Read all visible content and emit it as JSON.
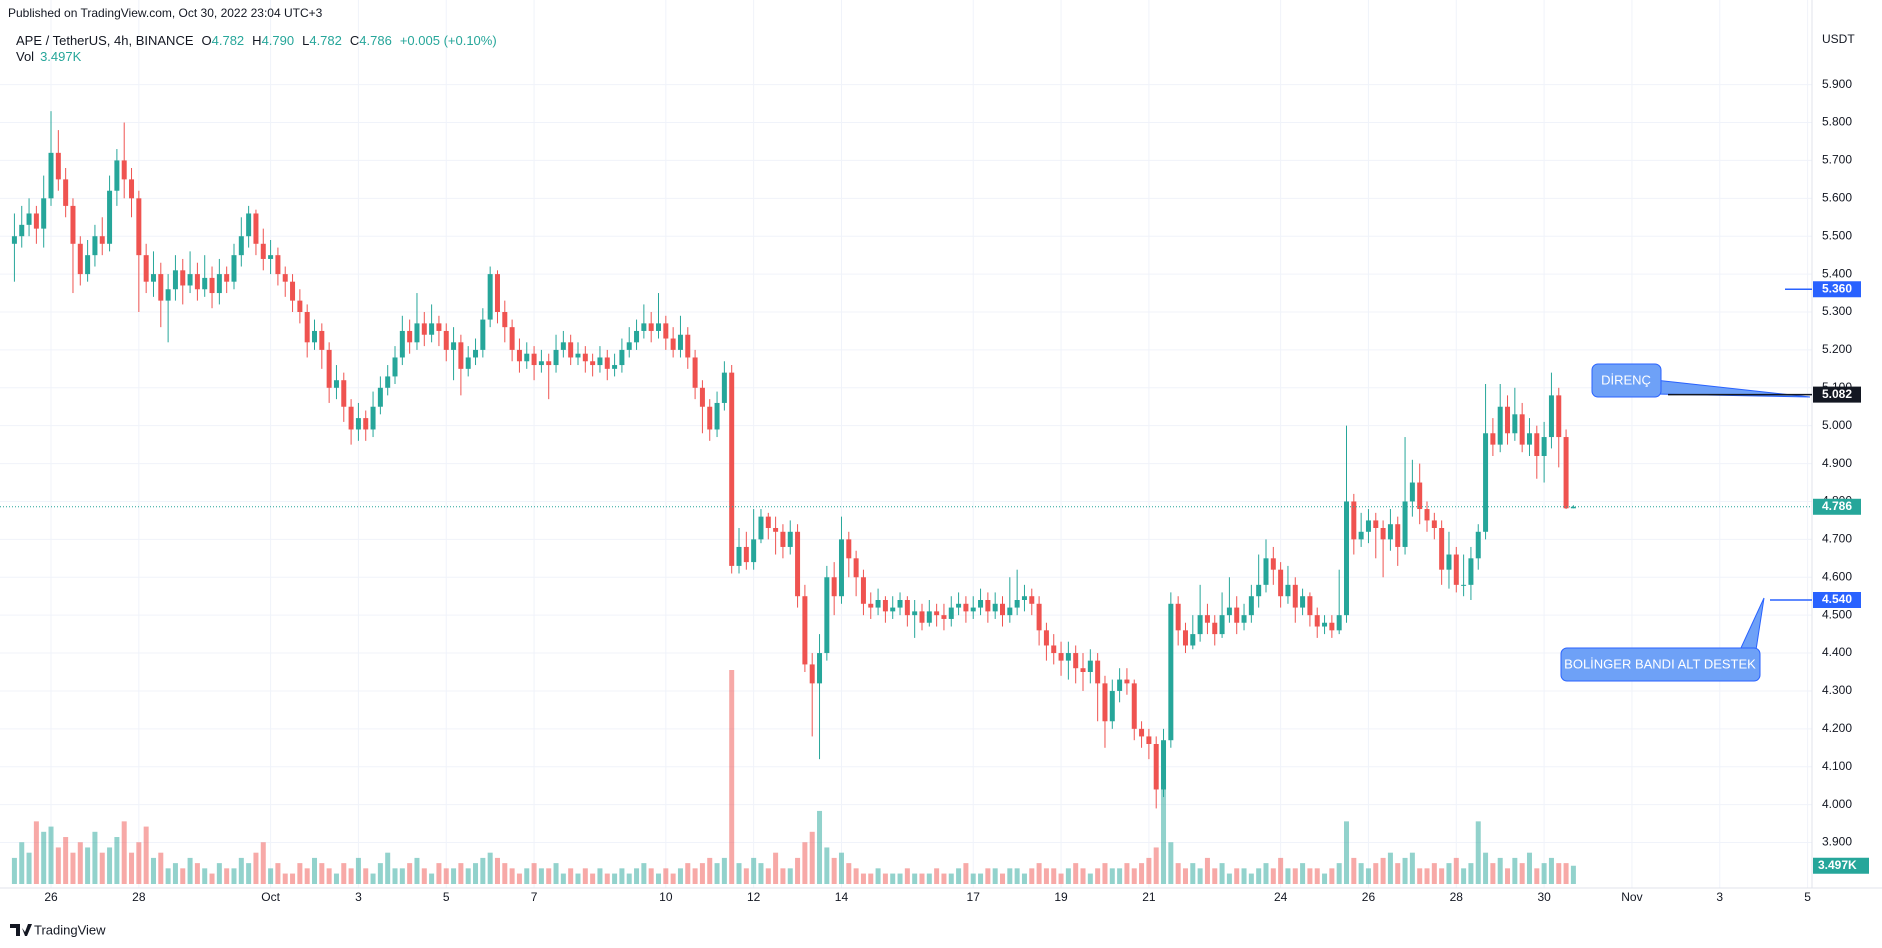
{
  "chart_data": {
    "type": "candlestick",
    "published": "Published on TradingView.com, Oct 30, 2022 23:04 UTC+3",
    "legend": {
      "symbol": "APE / TetherUS, 4h, BINANCE",
      "fields": [
        {
          "label": "O",
          "value": "4.782"
        },
        {
          "label": "H",
          "value": "4.790"
        },
        {
          "label": "L",
          "value": "4.782"
        },
        {
          "label": "C",
          "value": "4.786"
        }
      ],
      "change": "+0.005 (+0.10%)"
    },
    "volume_label": {
      "label": "Vol",
      "value": "3.497K"
    },
    "currency": "USDT",
    "footer": "TradingView",
    "up_color": "#26a69a",
    "down_color": "#ef5350",
    "grid": true,
    "xlim": [
      -1.97,
      245.6
    ],
    "xticks": [
      {
        "value": 5,
        "label": "26"
      },
      {
        "value": 17,
        "label": "28"
      },
      {
        "value": 35,
        "label": "Oct"
      },
      {
        "value": 47,
        "label": "3"
      },
      {
        "value": 59,
        "label": "5"
      },
      {
        "value": 71,
        "label": "7"
      },
      {
        "value": 89,
        "label": "10"
      },
      {
        "value": 101,
        "label": "12"
      },
      {
        "value": 113,
        "label": "14"
      },
      {
        "value": 131,
        "label": "17"
      },
      {
        "value": 143,
        "label": "19"
      },
      {
        "value": 155,
        "label": "21"
      },
      {
        "value": 173,
        "label": "24"
      },
      {
        "value": 185,
        "label": "26"
      },
      {
        "value": 197,
        "label": "28"
      },
      {
        "value": 209,
        "label": "30"
      },
      {
        "value": 221,
        "label": "Nov"
      },
      {
        "value": 233,
        "label": "3"
      },
      {
        "value": 245,
        "label": "5"
      }
    ],
    "ylim": [
      3.78,
      6.06
    ],
    "yticks": [
      {
        "value": 3.9,
        "label": "3.900"
      },
      {
        "value": 4.0,
        "label": "4.000"
      },
      {
        "value": 4.1,
        "label": "4.100"
      },
      {
        "value": 4.2,
        "label": "4.200"
      },
      {
        "value": 4.3,
        "label": "4.300"
      },
      {
        "value": 4.4,
        "label": "4.400"
      },
      {
        "value": 4.5,
        "label": "4.500"
      },
      {
        "value": 4.6,
        "label": "4.600"
      },
      {
        "value": 4.7,
        "label": "4.700"
      },
      {
        "value": 4.8,
        "label": "4.800"
      },
      {
        "value": 4.9,
        "label": "4.900"
      },
      {
        "value": 5.0,
        "label": "5.000"
      },
      {
        "value": 5.1,
        "label": "5.100"
      },
      {
        "value": 5.2,
        "label": "5.200"
      },
      {
        "value": 5.3,
        "label": "5.300"
      },
      {
        "value": 5.4,
        "label": "5.400"
      },
      {
        "value": 5.5,
        "label": "5.500"
      },
      {
        "value": 5.6,
        "label": "5.600"
      },
      {
        "value": 5.7,
        "label": "5.700"
      },
      {
        "value": 5.8,
        "label": "5.800"
      },
      {
        "value": 5.9,
        "label": "5.900"
      }
    ],
    "last_price": {
      "value": 4.786,
      "label": "4.786",
      "color": "#26a69a"
    },
    "levels": [
      {
        "value": 5.36,
        "label": "5.360",
        "color": "#2962ff"
      },
      {
        "value": 5.082,
        "label": "5.082",
        "color": "#131722"
      },
      {
        "value": 4.54,
        "label": "4.540",
        "color": "#2962ff"
      }
    ],
    "annotations": [
      "DİRENÇ",
      "BOLİNGER BANDI ALT DESTEK"
    ],
    "open": [
      5.48,
      5.5,
      5.53,
      5.56,
      5.52,
      5.6,
      5.72,
      5.65,
      5.58,
      5.48,
      5.4,
      5.45,
      5.5,
      5.48,
      5.62,
      5.7,
      5.65,
      5.6,
      5.45,
      5.38,
      5.4,
      5.33,
      5.36,
      5.41,
      5.37,
      5.4,
      5.36,
      5.39,
      5.35,
      5.4,
      5.38,
      5.45,
      5.5,
      5.56,
      5.48,
      5.44,
      5.45,
      5.4,
      5.38,
      5.33,
      5.3,
      5.22,
      5.25,
      5.2,
      5.1,
      5.12,
      5.05,
      4.99,
      5.02,
      4.99,
      5.05,
      5.1,
      5.13,
      5.18,
      5.25,
      5.22,
      5.27,
      5.24,
      5.27,
      5.25,
      5.2,
      5.22,
      5.15,
      5.18,
      5.2,
      5.28,
      5.4,
      5.3,
      5.26,
      5.2,
      5.17,
      5.19,
      5.16,
      5.17,
      5.16,
      5.2,
      5.22,
      5.18,
      5.19,
      5.17,
      5.16,
      5.18,
      5.15,
      5.16,
      5.2,
      5.22,
      5.25,
      5.27,
      5.25,
      5.27,
      5.23,
      5.2,
      5.24,
      5.18,
      5.1,
      5.05,
      4.99,
      5.06,
      5.14,
      4.63,
      4.68,
      4.64,
      4.7,
      4.76,
      4.73,
      4.72,
      4.68,
      4.72,
      4.55,
      4.37,
      4.32,
      4.4,
      4.6,
      4.55,
      4.7,
      4.65,
      4.6,
      4.53,
      4.52,
      4.54,
      4.51,
      4.52,
      4.54,
      4.5,
      4.51,
      4.48,
      4.51,
      4.5,
      4.49,
      4.52,
      4.53,
      4.51,
      4.52,
      4.54,
      4.51,
      4.53,
      4.5,
      4.52,
      4.54,
      4.55,
      4.53,
      4.46,
      4.42,
      4.4,
      4.38,
      4.4,
      4.36,
      4.35,
      4.38,
      4.32,
      4.22,
      4.3,
      4.33,
      4.32,
      4.2,
      4.18,
      4.16,
      4.04,
      4.17,
      4.53,
      4.46,
      4.42,
      4.45,
      4.5,
      4.48,
      4.45,
      4.5,
      4.52,
      4.48,
      4.5,
      4.55,
      4.58,
      4.65,
      4.62,
      4.55,
      4.58,
      4.52,
      4.55,
      4.5,
      4.47,
      4.48,
      4.46,
      4.5,
      4.8,
      4.7,
      4.72,
      4.75,
      4.73,
      4.7,
      4.74,
      4.68,
      4.8,
      4.85,
      4.78,
      4.75,
      4.73,
      4.62,
      4.66,
      4.58,
      4.58,
      4.65,
      4.72,
      4.98,
      4.95,
      5.05,
      4.98,
      5.03,
      4.95,
      4.98,
      4.92,
      4.97,
      5.08,
      4.97,
      4.782
    ],
    "high": [
      5.56,
      5.58,
      5.6,
      5.58,
      5.66,
      5.83,
      5.78,
      5.68,
      5.6,
      5.5,
      5.49,
      5.53,
      5.55,
      5.66,
      5.73,
      5.8,
      5.68,
      5.62,
      5.48,
      5.46,
      5.43,
      5.4,
      5.45,
      5.44,
      5.46,
      5.43,
      5.45,
      5.42,
      5.44,
      5.42,
      5.48,
      5.55,
      5.58,
      5.57,
      5.52,
      5.49,
      5.47,
      5.42,
      5.4,
      5.36,
      5.32,
      5.28,
      5.27,
      5.22,
      5.16,
      5.14,
      5.07,
      5.06,
      5.04,
      5.09,
      5.13,
      5.16,
      5.21,
      5.29,
      5.28,
      5.35,
      5.3,
      5.32,
      5.29,
      5.27,
      5.26,
      5.24,
      5.21,
      5.23,
      5.31,
      5.42,
      5.41,
      5.33,
      5.28,
      5.23,
      5.22,
      5.21,
      5.2,
      5.19,
      5.24,
      5.25,
      5.24,
      5.22,
      5.21,
      5.19,
      5.21,
      5.2,
      5.19,
      5.23,
      5.26,
      5.28,
      5.32,
      5.3,
      5.35,
      5.29,
      5.26,
      5.29,
      5.26,
      5.2,
      5.12,
      5.07,
      5.09,
      5.17,
      5.16,
      4.73,
      4.72,
      4.78,
      4.78,
      4.77,
      4.76,
      4.74,
      4.75,
      4.74,
      4.58,
      4.4,
      4.45,
      4.63,
      4.64,
      4.76,
      4.72,
      4.67,
      4.62,
      4.56,
      4.57,
      4.55,
      4.55,
      4.56,
      4.55,
      4.54,
      4.53,
      4.54,
      4.53,
      4.53,
      4.55,
      4.56,
      4.55,
      4.55,
      4.57,
      4.56,
      4.56,
      4.55,
      4.6,
      4.62,
      4.58,
      4.57,
      4.55,
      4.48,
      4.45,
      4.43,
      4.43,
      4.42,
      4.4,
      4.41,
      4.4,
      4.34,
      4.33,
      4.36,
      4.36,
      4.33,
      4.22,
      4.2,
      4.18,
      4.2,
      4.56,
      4.55,
      4.48,
      4.5,
      4.58,
      4.53,
      4.5,
      4.56,
      4.6,
      4.55,
      4.53,
      4.58,
      4.66,
      4.7,
      4.68,
      4.64,
      4.63,
      4.6,
      4.57,
      4.56,
      4.52,
      4.5,
      4.5,
      4.62,
      5.0,
      4.82,
      4.77,
      4.78,
      4.77,
      4.75,
      4.78,
      4.76,
      4.97,
      4.91,
      4.9,
      4.8,
      4.77,
      4.75,
      4.72,
      4.68,
      4.66,
      4.68,
      4.74,
      5.11,
      5.02,
      5.11,
      5.08,
      5.1,
      5.06,
      5.02,
      5.0,
      5.01,
      5.14,
      5.1,
      4.99,
      4.79
    ],
    "low": [
      5.38,
      5.47,
      5.5,
      5.48,
      5.47,
      5.58,
      5.62,
      5.55,
      5.35,
      5.37,
      5.38,
      5.42,
      5.45,
      5.46,
      5.58,
      5.6,
      5.55,
      5.3,
      5.35,
      5.34,
      5.26,
      5.22,
      5.33,
      5.32,
      5.35,
      5.33,
      5.34,
      5.31,
      5.32,
      5.35,
      5.36,
      5.42,
      5.47,
      5.45,
      5.41,
      5.4,
      5.37,
      5.34,
      5.3,
      5.27,
      5.18,
      5.2,
      5.15,
      5.06,
      5.07,
      5.01,
      4.95,
      4.96,
      4.96,
      4.97,
      5.03,
      5.08,
      5.11,
      5.16,
      5.19,
      5.2,
      5.21,
      5.22,
      5.21,
      5.17,
      5.12,
      5.08,
      5.13,
      5.16,
      5.18,
      5.26,
      5.27,
      5.22,
      5.17,
      5.14,
      5.15,
      5.12,
      5.14,
      5.07,
      5.14,
      5.18,
      5.16,
      5.16,
      5.14,
      5.13,
      5.14,
      5.12,
      5.13,
      5.14,
      5.18,
      5.2,
      5.23,
      5.22,
      5.23,
      5.2,
      5.18,
      5.18,
      5.15,
      5.07,
      4.98,
      4.96,
      4.97,
      5.04,
      4.61,
      4.61,
      4.62,
      4.62,
      4.69,
      4.7,
      4.66,
      4.65,
      4.66,
      4.52,
      4.35,
      4.18,
      4.12,
      4.38,
      4.5,
      4.53,
      4.6,
      4.55,
      4.5,
      4.49,
      4.5,
      4.48,
      4.49,
      4.5,
      4.47,
      4.44,
      4.46,
      4.47,
      4.47,
      4.46,
      4.47,
      4.5,
      4.48,
      4.49,
      4.5,
      4.48,
      4.49,
      4.47,
      4.48,
      4.5,
      4.51,
      4.5,
      4.42,
      4.38,
      4.37,
      4.34,
      4.33,
      4.32,
      4.3,
      4.32,
      4.22,
      4.15,
      4.2,
      4.27,
      4.29,
      4.17,
      4.15,
      4.12,
      3.99,
      4.02,
      4.15,
      4.42,
      4.4,
      4.41,
      4.43,
      4.45,
      4.42,
      4.44,
      4.48,
      4.45,
      4.46,
      4.48,
      4.52,
      4.56,
      4.58,
      4.52,
      4.53,
      4.48,
      4.5,
      4.47,
      4.44,
      4.45,
      4.44,
      4.45,
      4.48,
      4.66,
      4.68,
      4.69,
      4.65,
      4.6,
      4.67,
      4.63,
      4.66,
      4.76,
      4.74,
      4.72,
      4.7,
      4.58,
      4.57,
      4.56,
      4.55,
      4.54,
      4.62,
      4.7,
      4.92,
      4.93,
      4.95,
      4.96,
      4.93,
      4.92,
      4.86,
      4.85,
      4.94,
      4.89,
      4.78,
      4.782
    ],
    "close": [
      5.5,
      5.53,
      5.56,
      5.52,
      5.6,
      5.72,
      5.65,
      5.58,
      5.48,
      5.4,
      5.45,
      5.5,
      5.48,
      5.62,
      5.7,
      5.65,
      5.6,
      5.45,
      5.38,
      5.4,
      5.33,
      5.36,
      5.41,
      5.37,
      5.4,
      5.36,
      5.39,
      5.35,
      5.4,
      5.38,
      5.45,
      5.5,
      5.56,
      5.48,
      5.44,
      5.45,
      5.4,
      5.38,
      5.33,
      5.3,
      5.22,
      5.25,
      5.2,
      5.1,
      5.12,
      5.05,
      4.99,
      5.02,
      4.99,
      5.05,
      5.1,
      5.13,
      5.18,
      5.25,
      5.22,
      5.27,
      5.24,
      5.27,
      5.25,
      5.2,
      5.22,
      5.15,
      5.18,
      5.2,
      5.28,
      5.4,
      5.3,
      5.26,
      5.2,
      5.17,
      5.19,
      5.16,
      5.17,
      5.16,
      5.2,
      5.22,
      5.18,
      5.19,
      5.17,
      5.16,
      5.18,
      5.15,
      5.16,
      5.2,
      5.22,
      5.25,
      5.27,
      5.25,
      5.27,
      5.23,
      5.2,
      5.24,
      5.18,
      5.1,
      5.05,
      4.99,
      5.06,
      5.14,
      4.63,
      4.68,
      4.64,
      4.7,
      4.76,
      4.73,
      4.72,
      4.68,
      4.72,
      4.55,
      4.37,
      4.32,
      4.4,
      4.6,
      4.55,
      4.7,
      4.65,
      4.6,
      4.53,
      4.52,
      4.54,
      4.51,
      4.52,
      4.54,
      4.5,
      4.51,
      4.48,
      4.51,
      4.5,
      4.49,
      4.52,
      4.53,
      4.51,
      4.52,
      4.54,
      4.51,
      4.53,
      4.5,
      4.52,
      4.54,
      4.55,
      4.53,
      4.46,
      4.42,
      4.4,
      4.38,
      4.4,
      4.36,
      4.35,
      4.38,
      4.32,
      4.22,
      4.3,
      4.33,
      4.32,
      4.2,
      4.18,
      4.16,
      4.04,
      4.17,
      4.53,
      4.46,
      4.42,
      4.45,
      4.5,
      4.48,
      4.45,
      4.5,
      4.52,
      4.48,
      4.5,
      4.55,
      4.58,
      4.65,
      4.62,
      4.55,
      4.58,
      4.52,
      4.55,
      4.5,
      4.47,
      4.48,
      4.46,
      4.5,
      4.8,
      4.7,
      4.72,
      4.75,
      4.73,
      4.7,
      4.74,
      4.68,
      4.8,
      4.85,
      4.78,
      4.75,
      4.73,
      4.62,
      4.66,
      4.58,
      4.58,
      4.65,
      4.72,
      4.98,
      4.95,
      5.05,
      4.98,
      5.03,
      4.95,
      4.98,
      4.92,
      4.97,
      5.08,
      4.97,
      4.782,
      4.786
    ],
    "volume": [
      5,
      8,
      6,
      12,
      10,
      11,
      7,
      9,
      6,
      8,
      7,
      10,
      6,
      7,
      9,
      12,
      6,
      8,
      11,
      5,
      6,
      3,
      4,
      3,
      5,
      4,
      3,
      2,
      4,
      3,
      3,
      5,
      4,
      6,
      8,
      3,
      4,
      2,
      2,
      4,
      3,
      5,
      4,
      3,
      2,
      4,
      3,
      5,
      3,
      2,
      4,
      6,
      3,
      3,
      4,
      5,
      3,
      2,
      4,
      3,
      3,
      4,
      3,
      4,
      5,
      6,
      5,
      4,
      3,
      2,
      3,
      4,
      3,
      3,
      4,
      2,
      3,
      2,
      3,
      2,
      3,
      2,
      2,
      3,
      2,
      3,
      4,
      3,
      2,
      3,
      2,
      3,
      4,
      3,
      4,
      5,
      4,
      5,
      41,
      4,
      3,
      5,
      4,
      3,
      6,
      3,
      3,
      5,
      8,
      10,
      14,
      7,
      5,
      6,
      4,
      3,
      2,
      2,
      3,
      2,
      2,
      2,
      3,
      2,
      2,
      2,
      3,
      2,
      2,
      3,
      4,
      2,
      2,
      3,
      3,
      2,
      3,
      3,
      2,
      3,
      4,
      3,
      3,
      2,
      3,
      4,
      3,
      2,
      3,
      4,
      3,
      3,
      4,
      3,
      4,
      5,
      7,
      20,
      8,
      4,
      3,
      4,
      3,
      5,
      3,
      4,
      2,
      3,
      3,
      2,
      3,
      4,
      3,
      5,
      3,
      3,
      4,
      3,
      3,
      2,
      3,
      4,
      12,
      5,
      4,
      3,
      4,
      5,
      6,
      4,
      5,
      6,
      3,
      3,
      4,
      3,
      4,
      5,
      3,
      4,
      12,
      6,
      4,
      5,
      3,
      5,
      4,
      6,
      3,
      4,
      5,
      4,
      4,
      3.497
    ]
  }
}
